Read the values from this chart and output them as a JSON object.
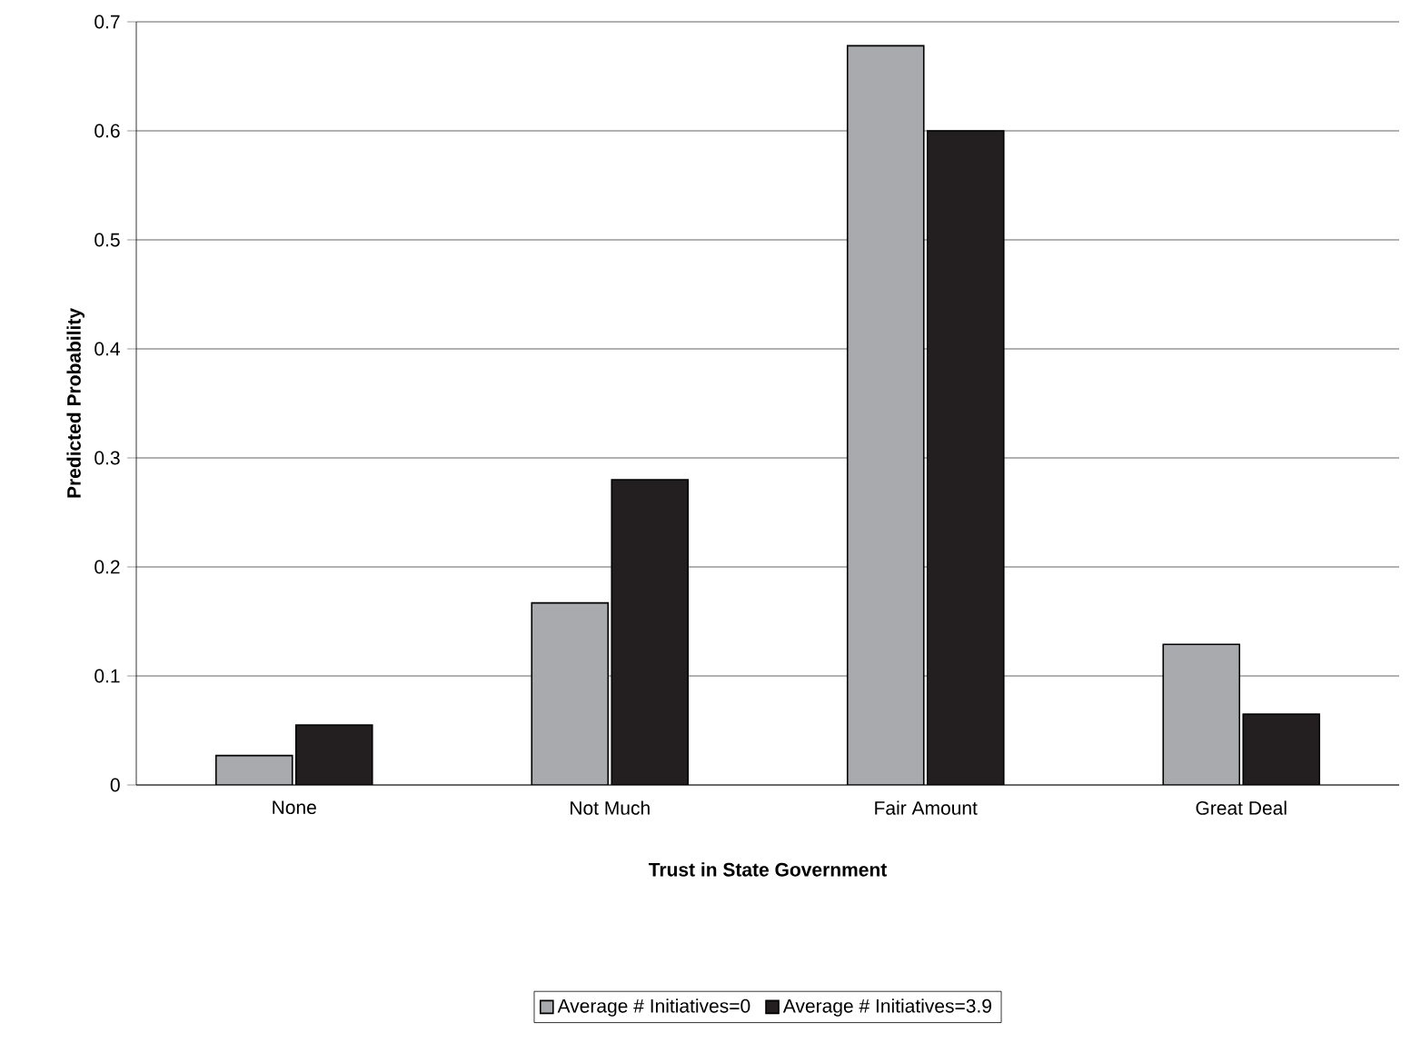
{
  "chart_data": {
    "type": "bar",
    "xlabel": "Trust in State Government",
    "ylabel": "Predicted Probability",
    "categories": [
      "None",
      "Not Much",
      "Fair Amount",
      "Great Deal"
    ],
    "series": [
      {
        "name": "Average # Initiatives=0",
        "color": "#a9aaad",
        "values": [
          0.027,
          0.167,
          0.678,
          0.129
        ]
      },
      {
        "name": "Average # Initiatives=3.9",
        "color": "#231f20",
        "values": [
          0.055,
          0.28,
          0.6,
          0.065
        ]
      }
    ],
    "ylim": [
      0,
      0.7
    ],
    "yticks": [
      0,
      0.1,
      0.2,
      0.3,
      0.4,
      0.5,
      0.6,
      0.7
    ],
    "grid": "y",
    "legend": "bottom"
  }
}
